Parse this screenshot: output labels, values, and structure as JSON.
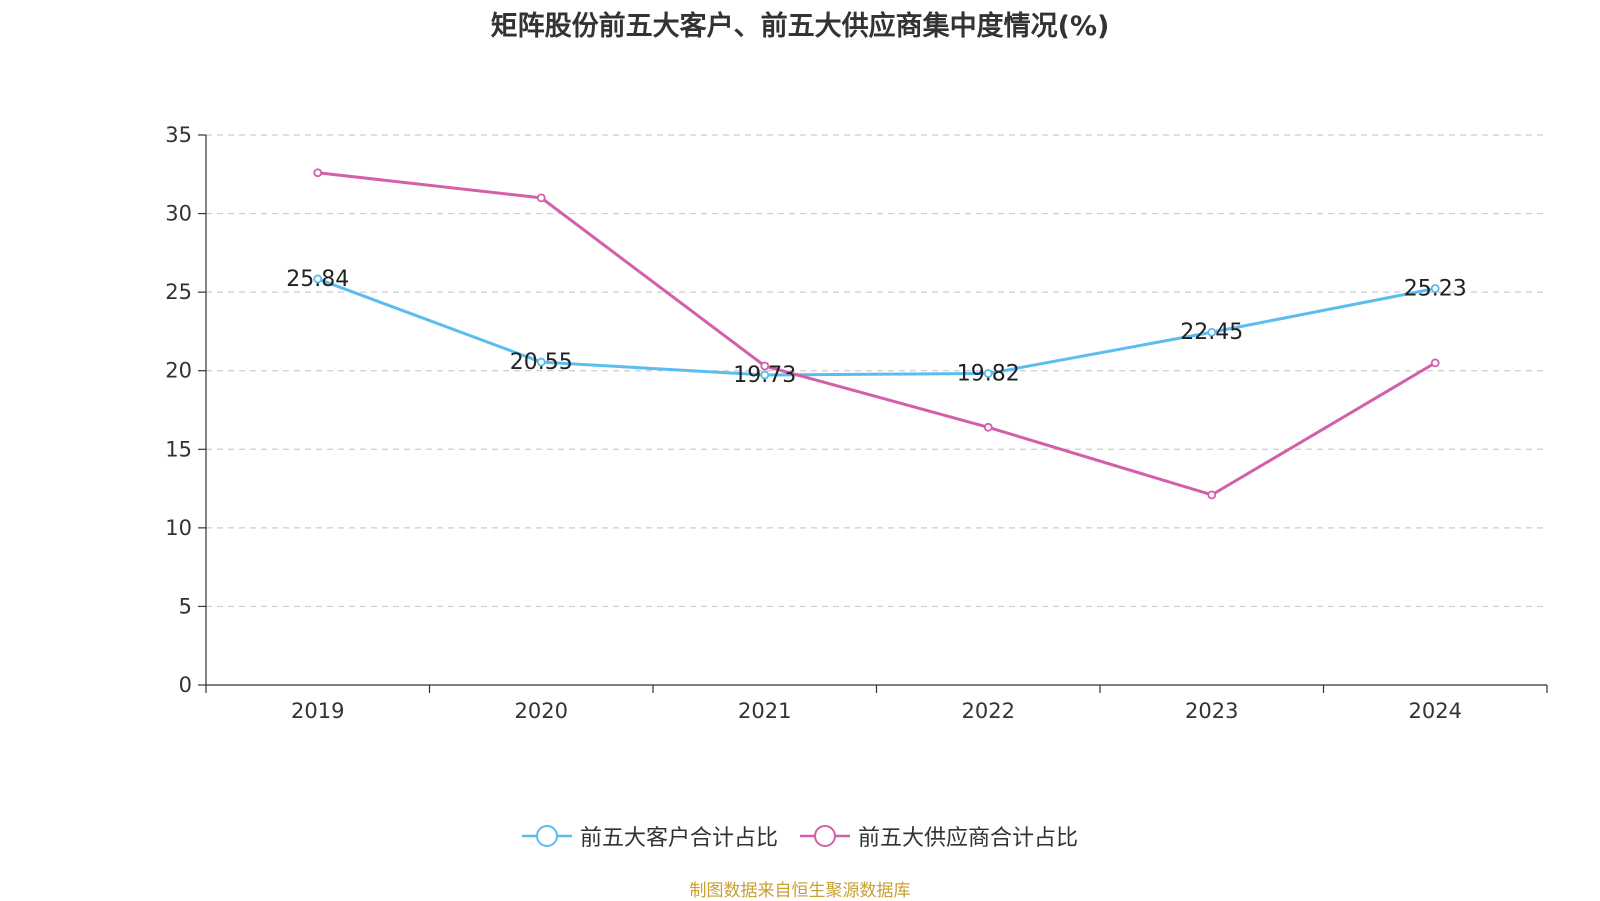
{
  "title": "矩阵股份前五大客户、前五大供应商集中度情况(%)",
  "source_note": "制图数据来自恒生聚源数据库",
  "chart_data": {
    "type": "line",
    "categories": [
      "2019",
      "2020",
      "2021",
      "2022",
      "2023",
      "2024"
    ],
    "ylim": [
      0,
      35
    ],
    "yticks": [
      0,
      5,
      10,
      15,
      20,
      25,
      30,
      35
    ],
    "grid": true,
    "legend_position": "bottom-center",
    "series": [
      {
        "name": "前五大客户合计占比",
        "color": "#5bbcf0",
        "values": [
          25.84,
          20.55,
          19.73,
          19.82,
          22.45,
          25.23
        ],
        "show_labels": true
      },
      {
        "name": "前五大供应商合计占比",
        "color": "#d35fa9",
        "values": [
          32.6,
          31.0,
          20.3,
          16.4,
          12.1,
          20.5
        ],
        "show_labels": false
      }
    ]
  }
}
